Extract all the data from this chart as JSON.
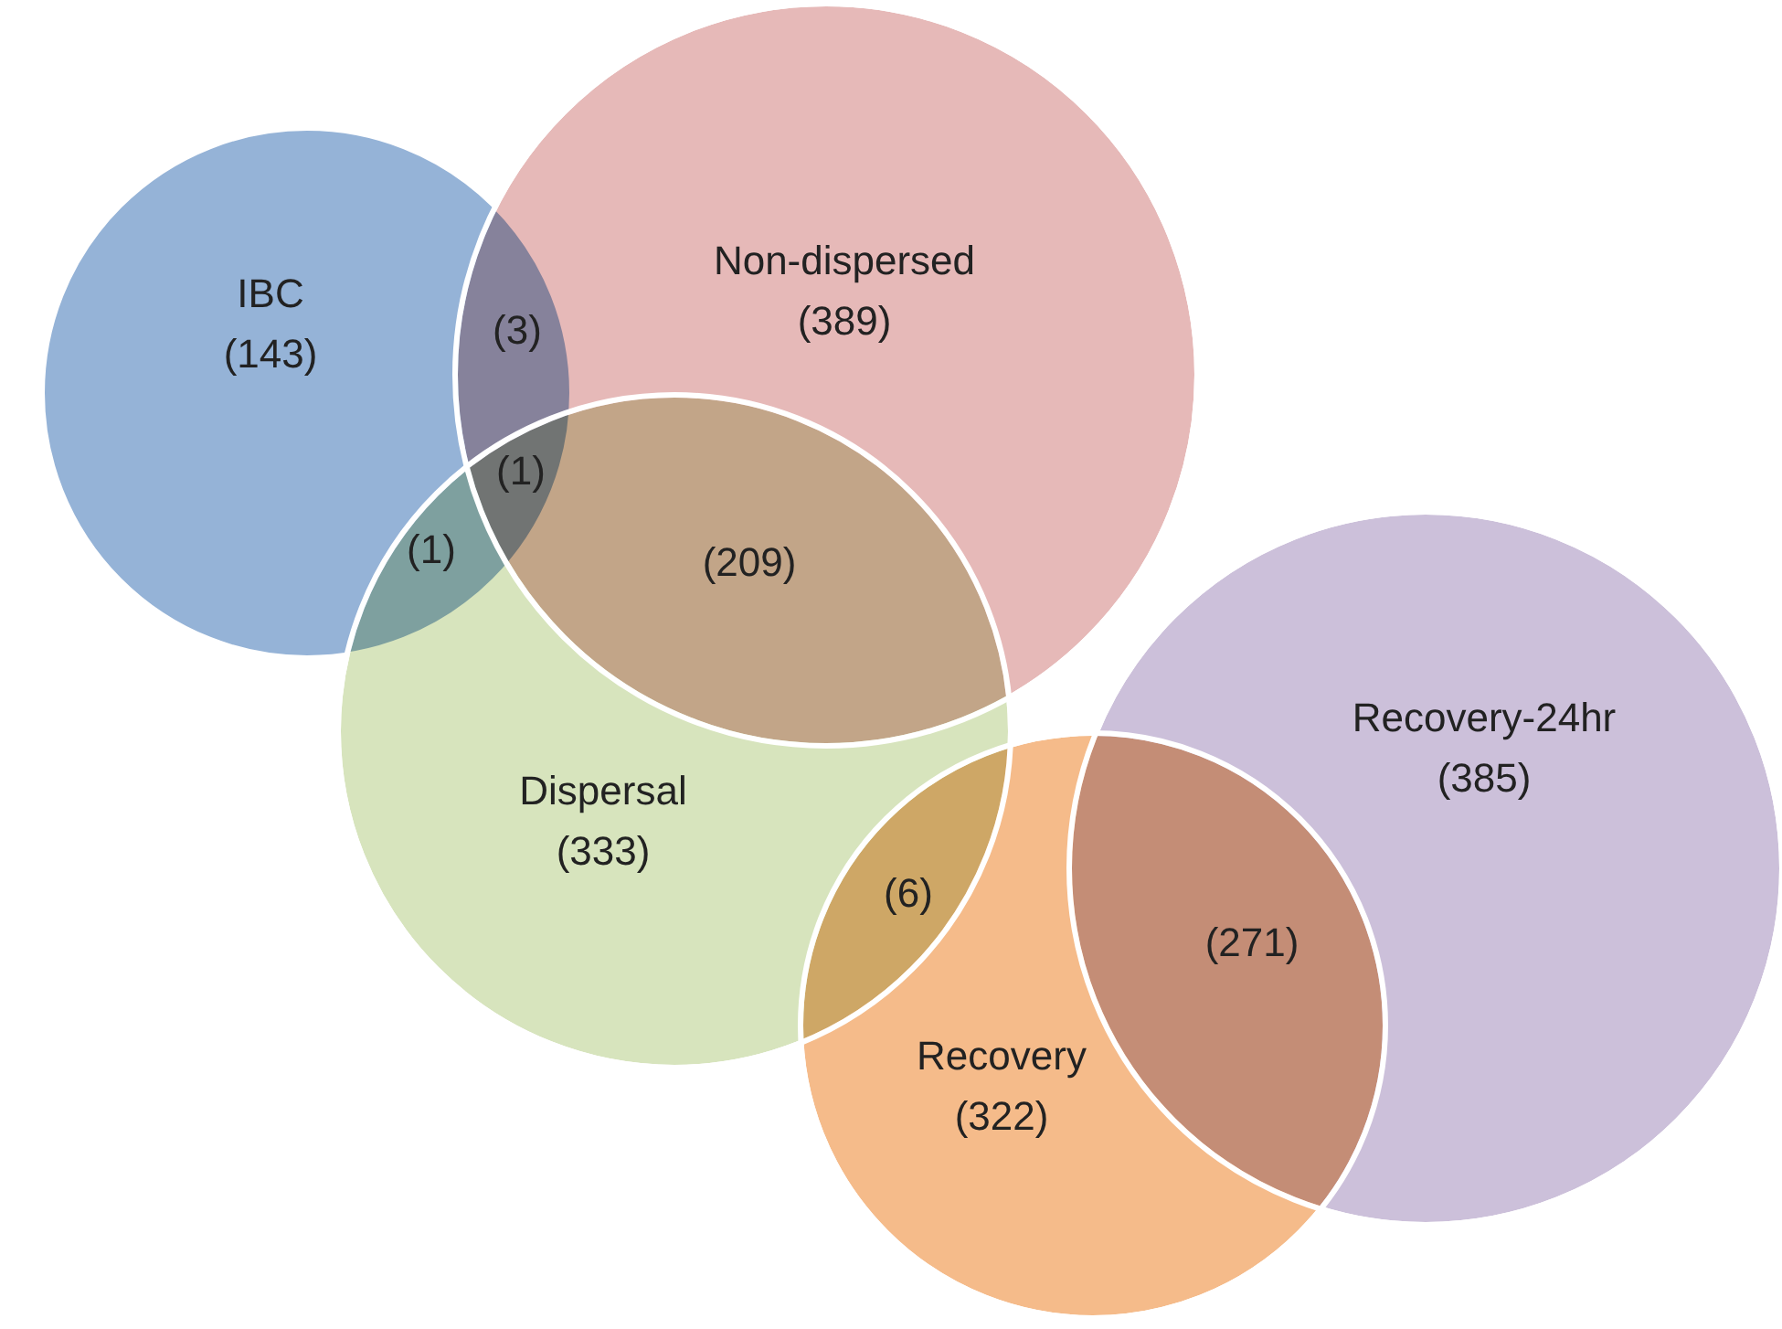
{
  "chart_data": {
    "type": "other",
    "categories": [
      "IBC",
      "Non-dispersed",
      "Dispersal",
      "Recovery",
      "Recovery-24hr"
    ],
    "values": [
      143,
      389,
      333,
      322,
      385
    ],
    "value_labels": [
      "(143)",
      "(389)",
      "(333)",
      "(322)",
      "(385)"
    ],
    "colors": [
      "#95b3d7",
      "#e6b9b8",
      "#d7e4bd",
      "#f5bb8a",
      "#ccc0da"
    ],
    "annotations": [
      "(3)",
      "(1)",
      "(1)",
      "(209)",
      "(6)",
      "(271)"
    ]
  }
}
